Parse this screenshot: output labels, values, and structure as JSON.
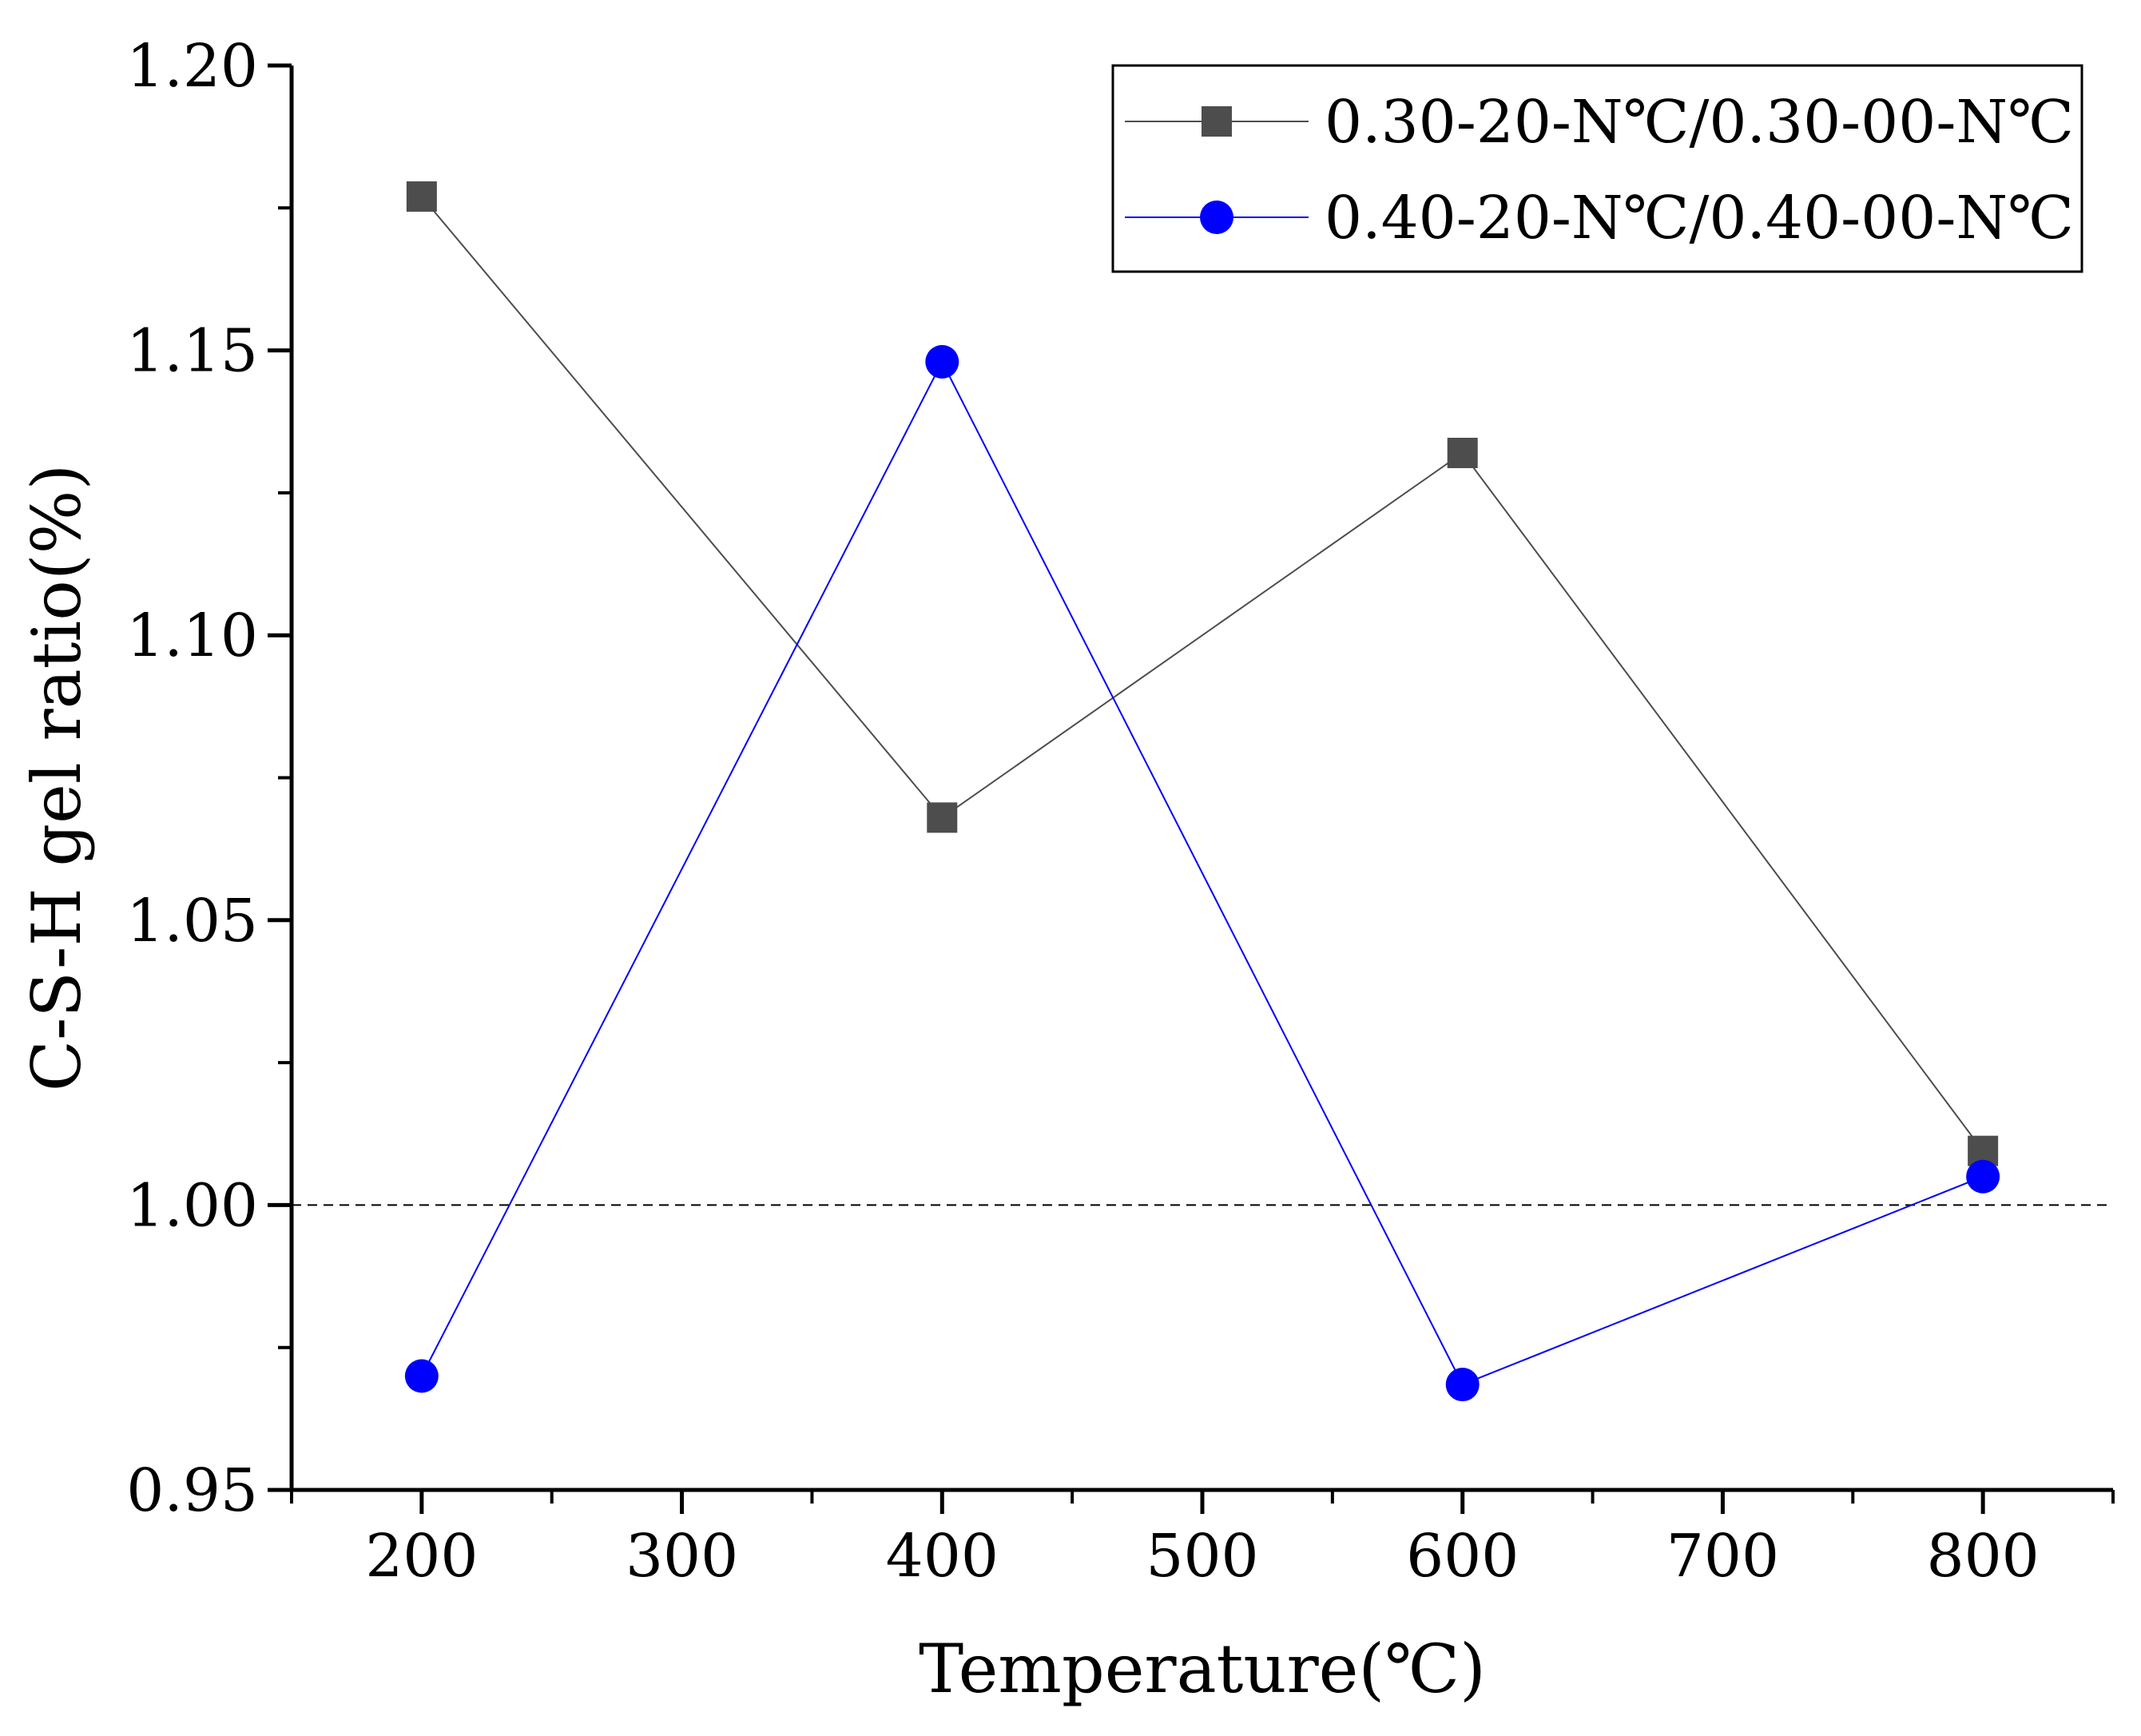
{
  "chart_data": {
    "type": "line",
    "title": "",
    "xlabel": "Temperature(℃)",
    "ylabel": "C-S-H gel ratio(%)",
    "x": [
      200,
      400,
      600,
      800
    ],
    "xlim": [
      150,
      850
    ],
    "ylim": [
      0.95,
      1.2
    ],
    "x_major_ticks": [
      200,
      300,
      400,
      500,
      600,
      700,
      800
    ],
    "x_tick_labels": [
      "200",
      "300",
      "400",
      "500",
      "600",
      "700",
      "800"
    ],
    "y_major_ticks": [
      0.95,
      1.0,
      1.05,
      1.1,
      1.15,
      1.2
    ],
    "y_tick_labels": [
      "0.95",
      "1.00",
      "1.05",
      "1.10",
      "1.15",
      "1.20"
    ],
    "reference_line": {
      "y": 1.0,
      "style": "dashed"
    },
    "grid": false,
    "legend_position": "top-right",
    "series": [
      {
        "name": "0.30-20-N℃/0.30-00-N℃",
        "values": [
          1.177,
          1.068,
          1.132,
          1.0095
        ],
        "marker": "square",
        "color": "#4d4d4d"
      },
      {
        "name": "0.40-20-N℃/0.40-00-N℃",
        "values": [
          0.97,
          1.148,
          0.9685,
          1.005
        ],
        "marker": "circle",
        "color": "#0000ff"
      }
    ]
  }
}
